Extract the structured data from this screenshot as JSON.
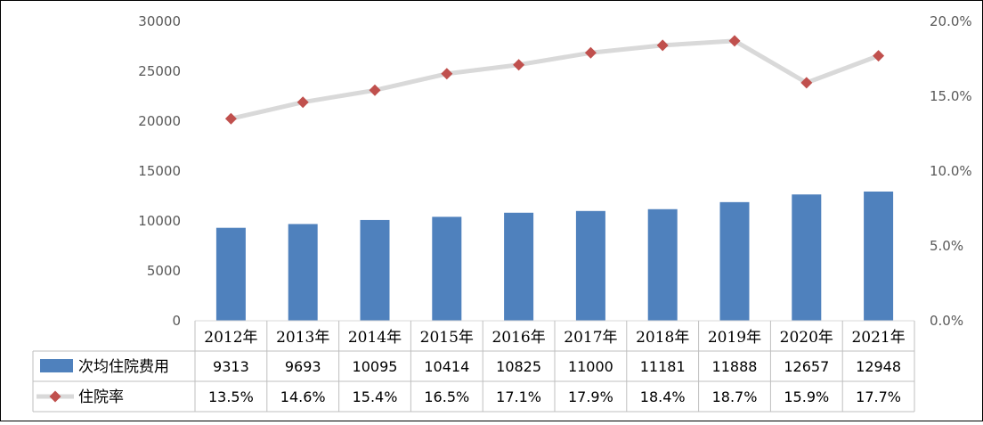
{
  "chart_data": {
    "type": "bar+line",
    "categories": [
      "2012年",
      "2013年",
      "2014年",
      "2015年",
      "2016年",
      "2017年",
      "2018年",
      "2019年",
      "2020年",
      "2021年"
    ],
    "series": [
      {
        "name": "次均住院费用",
        "type": "bar",
        "axis": "left",
        "color": "#4F81BD",
        "values": [
          9313,
          9693,
          10095,
          10414,
          10825,
          11000,
          11181,
          11888,
          12657,
          12948
        ],
        "display": [
          "9313",
          "9693",
          "10095",
          "10414",
          "10825",
          "11000",
          "11181",
          "11888",
          "12657",
          "12948"
        ]
      },
      {
        "name": "住院率",
        "type": "line",
        "axis": "right",
        "line_color": "#D9D9D9",
        "marker_color": "#C0504D",
        "marker": "diamond",
        "values": [
          13.5,
          14.6,
          15.4,
          16.5,
          17.1,
          17.9,
          18.4,
          18.7,
          15.9,
          17.7
        ],
        "display": [
          "13.5%",
          "14.6%",
          "15.4%",
          "16.5%",
          "17.1%",
          "17.9%",
          "18.4%",
          "18.7%",
          "15.9%",
          "17.7%"
        ]
      }
    ],
    "y_left": {
      "ylim": [
        0,
        30000
      ],
      "ticks": [
        "30000",
        "25000",
        "20000",
        "15000",
        "10000",
        "5000",
        "0"
      ]
    },
    "y_right": {
      "ylim": [
        0,
        20
      ],
      "ticks": [
        "20.0%",
        "15.0%",
        "10.0%",
        "5.0%",
        "0.0%"
      ]
    },
    "data_table": true,
    "grid": false
  }
}
